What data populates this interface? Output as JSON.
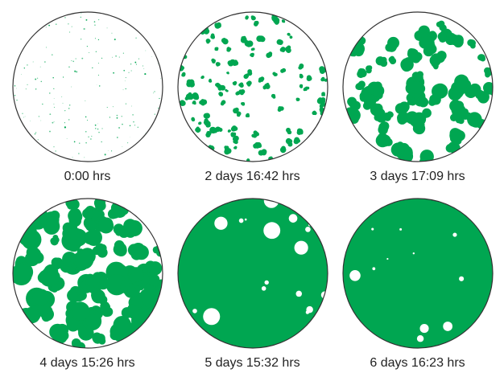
{
  "figure": {
    "colony_color": "#00a651",
    "wells": [
      {
        "label": "0:00 hrs",
        "coverage": 0.01
      },
      {
        "label": "2 days 16:42 hrs",
        "coverage": 0.12
      },
      {
        "label": "3 days 17:09 hrs",
        "coverage": 0.38
      },
      {
        "label": "4 days 15:26 hrs",
        "coverage": 0.62
      },
      {
        "label": "5 days 15:32 hrs",
        "coverage": 0.93
      },
      {
        "label": "6 days 16:23 hrs",
        "coverage": 0.97
      }
    ]
  }
}
